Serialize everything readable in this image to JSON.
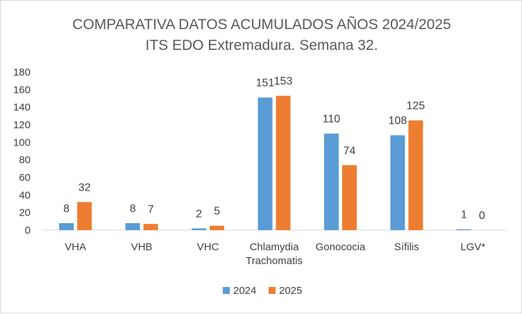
{
  "chart_data": {
    "type": "bar",
    "title": "COMPARATIVA DATOS ACUMULADOS AÑOS 2024/2025",
    "subtitle": "ITS EDO Extremadura. Semana 32.",
    "xlabel": "",
    "ylabel": "",
    "categories": [
      [
        "VHA"
      ],
      [
        "VHB"
      ],
      [
        "VHC"
      ],
      [
        "Chlamydia",
        "Trachomatis"
      ],
      [
        "Gonococia"
      ],
      [
        "Sífilis"
      ],
      [
        "LGV*"
      ]
    ],
    "series": [
      {
        "name": "2024",
        "color": "#5b9bd5",
        "values": [
          8,
          8,
          2,
          151,
          110,
          108,
          1
        ]
      },
      {
        "name": "2025",
        "color": "#ed7d31",
        "values": [
          32,
          7,
          5,
          153,
          74,
          125,
          0
        ]
      }
    ],
    "ylim": [
      0,
      180
    ],
    "yticks": [
      "0",
      "20",
      "40",
      "60",
      "80",
      "100",
      "120",
      "140",
      "160",
      "180"
    ],
    "grid": false,
    "legend_position": "bottom"
  }
}
